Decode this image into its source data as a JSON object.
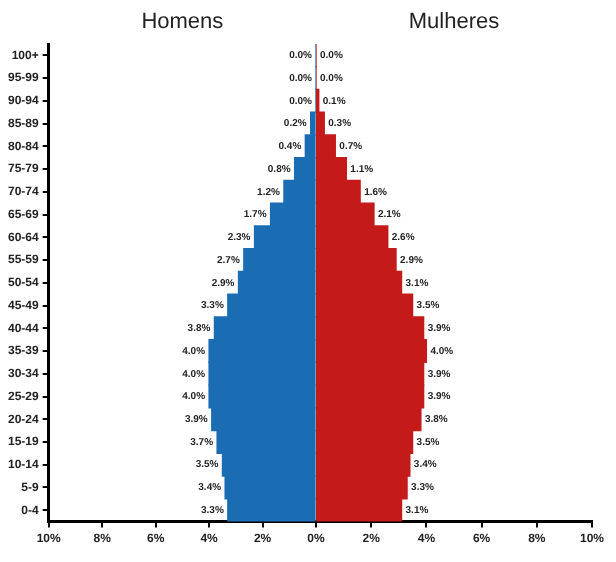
{
  "chart_data": [
    {
      "type": "bar",
      "orientation": "horizontal",
      "title": "Homens",
      "categories": [
        "100+",
        "95-99",
        "90-94",
        "85-89",
        "80-84",
        "75-79",
        "70-74",
        "65-69",
        "60-64",
        "55-59",
        "50-54",
        "45-49",
        "40-44",
        "35-39",
        "30-34",
        "25-29",
        "20-24",
        "15-19",
        "10-14",
        "5-9",
        "0-4"
      ],
      "xlim": [
        10,
        0
      ],
      "xticks": [
        {
          "value": 10,
          "label": "10%"
        },
        {
          "value": 8,
          "label": "8%"
        },
        {
          "value": 6,
          "label": "6%"
        },
        {
          "value": 4,
          "label": "4%"
        },
        {
          "value": 2,
          "label": "2%"
        },
        {
          "value": 0,
          "label": "0%"
        }
      ],
      "series": [
        {
          "color": "#1b6db3",
          "values": [
            0.0,
            0.0,
            0.0,
            0.2,
            0.4,
            0.8,
            1.2,
            1.7,
            2.3,
            2.7,
            2.9,
            3.3,
            3.8,
            4.0,
            4.0,
            4.0,
            3.9,
            3.7,
            3.5,
            3.4,
            3.3
          ],
          "value_labels": [
            "0.0%",
            "0.0%",
            "0.0%",
            "0.2%",
            "0.4%",
            "0.8%",
            "1.2%",
            "1.7%",
            "2.3%",
            "2.7%",
            "2.9%",
            "3.3%",
            "3.8%",
            "4.0%",
            "4.0%",
            "4.0%",
            "3.9%",
            "3.7%",
            "3.5%",
            "3.4%",
            "3.3%"
          ]
        }
      ]
    },
    {
      "type": "bar",
      "orientation": "horizontal",
      "title": "Mulheres",
      "tick_labels": "x",
      "categories": [
        null,
        null,
        null,
        null,
        null,
        null,
        null,
        null,
        null,
        null,
        null,
        null,
        null,
        null,
        null,
        null,
        null,
        null,
        null,
        null,
        null
      ],
      "xlim": [
        0,
        10
      ],
      "xticks": [
        {
          "value": 2,
          "label": "2%"
        },
        {
          "value": 4,
          "label": "4%"
        },
        {
          "value": 6,
          "label": "6%"
        },
        {
          "value": 8,
          "label": "8%"
        },
        {
          "value": 10,
          "label": "10%"
        }
      ],
      "series": [
        {
          "color": "#c41a1a",
          "values": [
            0.0,
            0.0,
            0.1,
            0.3,
            0.7,
            1.1,
            1.6,
            2.1,
            2.6,
            2.9,
            3.1,
            3.5,
            3.9,
            4.0,
            3.9,
            3.9,
            3.8,
            3.5,
            3.4,
            3.3,
            3.1
          ],
          "value_labels": [
            "0.0%",
            "0.0%",
            "0.1%",
            "0.3%",
            "0.7%",
            "1.1%",
            "1.6%",
            "2.1%",
            "2.6%",
            "2.9%",
            "3.1%",
            "3.5%",
            "3.9%",
            "4.0%",
            "3.9%",
            "3.9%",
            "3.8%",
            "3.5%",
            "3.4%",
            "3.3%",
            "3.1%"
          ]
        }
      ]
    }
  ]
}
